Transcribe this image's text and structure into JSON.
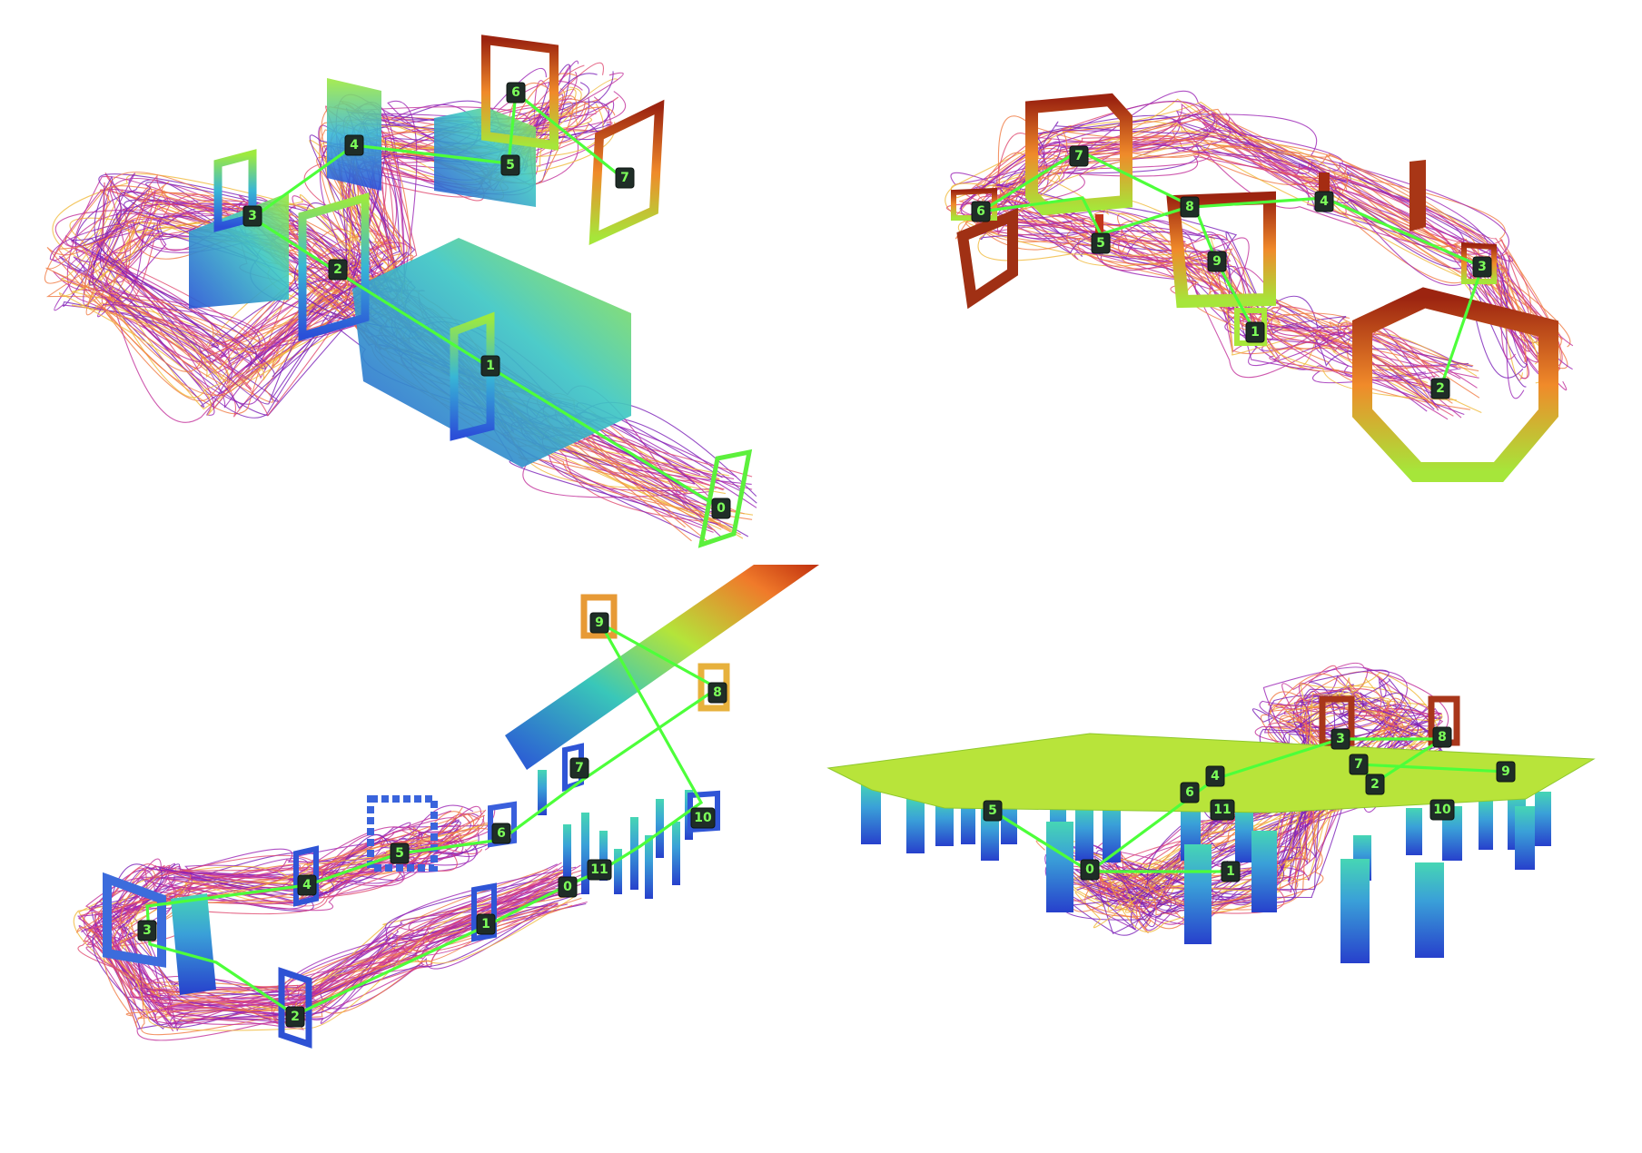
{
  "colors": {
    "background": "#ffffff",
    "route": "#4dff3a",
    "tag_fill": "#1f2d27",
    "tag_text": "#7dff5a",
    "trajectory_colors": [
      "#7a1fb8",
      "#9b24b5",
      "#c22f9a",
      "#e0486f",
      "#f07a42",
      "#f0b93a"
    ],
    "gate_cold": "#2f5fe0",
    "gate_mid": "#3fd0c8",
    "gate_warm": "#a8e83a",
    "gate_hot": "#b83010",
    "platform": "#b7e63a"
  },
  "panels": [
    {
      "id": "panel-top-left",
      "waypoints": [
        "0",
        "1",
        "2",
        "3",
        "4",
        "5",
        "6",
        "7"
      ]
    },
    {
      "id": "panel-top-right",
      "waypoints": [
        "1",
        "2",
        "3",
        "4",
        "5",
        "6",
        "7",
        "8",
        "9"
      ]
    },
    {
      "id": "panel-bottom-left",
      "waypoints": [
        "0",
        "1",
        "2",
        "3",
        "4",
        "5",
        "6",
        "7",
        "8",
        "9",
        "10",
        "11"
      ]
    },
    {
      "id": "panel-bottom-right",
      "waypoints": [
        "0",
        "1",
        "2",
        "3",
        "4",
        "5",
        "6",
        "7",
        "8",
        "9",
        "10",
        "11"
      ]
    }
  ]
}
